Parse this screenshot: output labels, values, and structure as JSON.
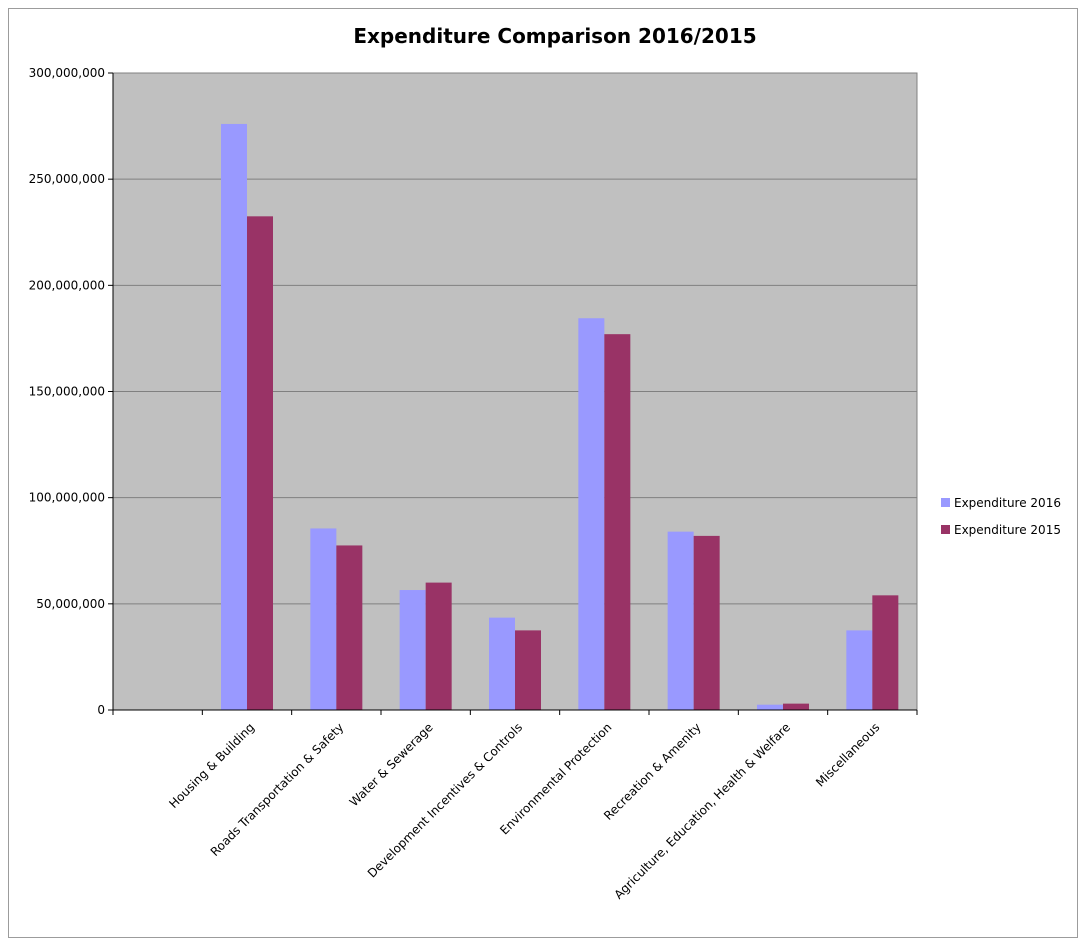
{
  "chart_data": {
    "type": "bar",
    "title": "Expenditure Comparison 2016/2015",
    "xlabel": "",
    "ylabel": "",
    "ylim": [
      0,
      300000000
    ],
    "yticks": [
      0,
      50000000,
      100000000,
      150000000,
      200000000,
      250000000,
      300000000
    ],
    "ytick_labels": [
      "0",
      "50,000,000",
      "100,000,000",
      "150,000,000",
      "200,000,000",
      "250,000,000",
      "300,000,000"
    ],
    "categories": [
      "",
      "Housing & Building",
      "Roads Transportation & Safety",
      "Water & Sewerage",
      "Development Incentives & Controls",
      "Environmental Protection",
      "Recreation & Amenity",
      "Agriculture, Education, Health & Welfare",
      "Miscellaneous"
    ],
    "series": [
      {
        "name": "Expenditure 2016",
        "color": "#9999ff",
        "values": [
          0,
          276000000,
          85500000,
          56500000,
          43500000,
          184500000,
          84000000,
          2500000,
          37500000
        ]
      },
      {
        "name": "Expenditure 2015",
        "color": "#993366",
        "values": [
          0,
          232500000,
          77500000,
          60000000,
          37500000,
          177000000,
          82000000,
          3000000,
          54000000
        ]
      }
    ],
    "grid": true,
    "plot_background": "#c0c0c0",
    "gridline_color": "#808080",
    "legend_position": "right"
  }
}
